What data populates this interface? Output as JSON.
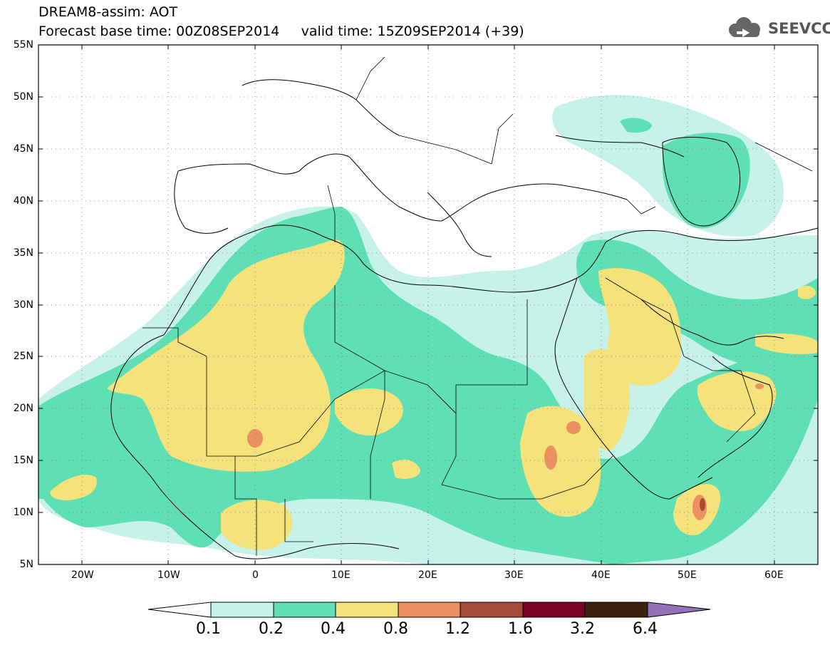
{
  "header": {
    "title_line1": "DREAM8-assim: AOT",
    "title_line2": "Forecast base time: 00Z08SEP2014     valid time: 15Z09SEP2014 (+39)",
    "logo_text": "SEEVCCC"
  },
  "map": {
    "projection": "lat-lon",
    "lon_range": [
      -25,
      65
    ],
    "lat_range": [
      5,
      55
    ],
    "grid": "dotted",
    "lat_labels": [
      "55N",
      "50N",
      "45N",
      "40N",
      "35N",
      "30N",
      "25N",
      "20N",
      "15N",
      "10N",
      "5N"
    ],
    "lat_values": [
      55,
      50,
      45,
      40,
      35,
      30,
      25,
      20,
      15,
      10,
      5
    ],
    "lon_labels": [
      "20W",
      "10W",
      "0",
      "10E",
      "20E",
      "30E",
      "40E",
      "50E",
      "60E"
    ],
    "lon_values": [
      -20,
      -10,
      0,
      10,
      20,
      30,
      40,
      50,
      60
    ]
  },
  "colorbar": {
    "levels": [
      "0.1",
      "0.2",
      "0.4",
      "0.8",
      "1.2",
      "1.6",
      "3.2",
      "6.4"
    ],
    "colors": [
      "#ffffff",
      "#c6f2ea",
      "#5fe0b4",
      "#f5e27a",
      "#eb9060",
      "#a84a3a",
      "#7d0025",
      "#3b2010",
      "#9470b8"
    ]
  }
}
